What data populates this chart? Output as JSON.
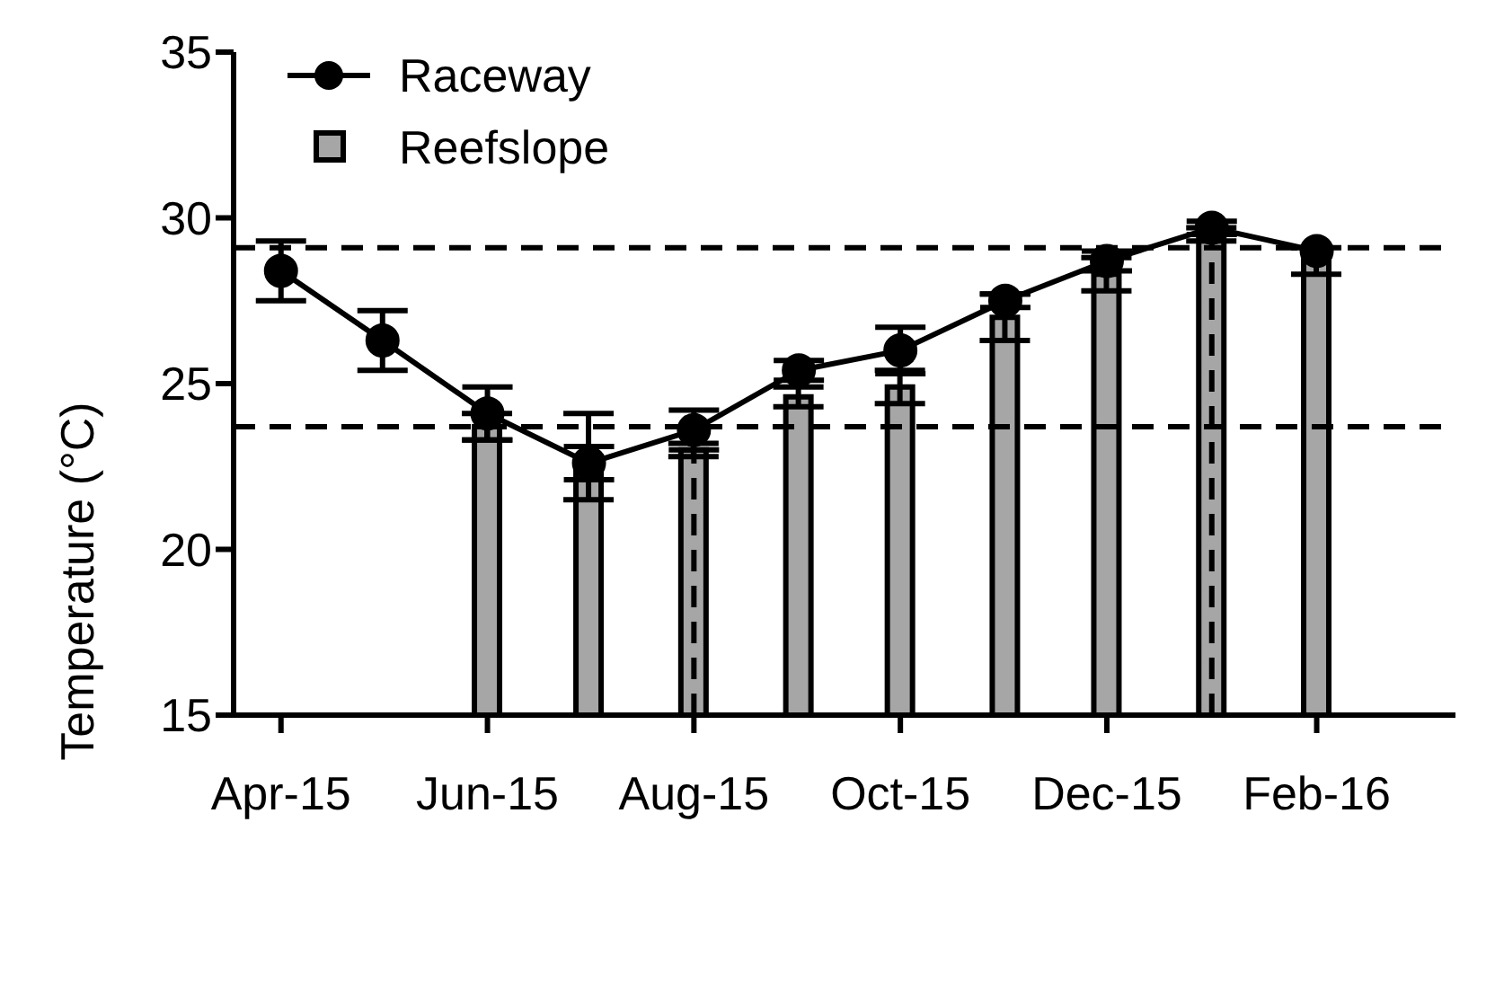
{
  "chart_data": {
    "type": "line",
    "ylabel": "Temperature (°C)",
    "x": [
      "2015-04",
      "2015-05",
      "2015-06",
      "2015-07",
      "2015-08",
      "2015-09",
      "2015-10",
      "2015-11",
      "2015-12",
      "2016-01",
      "2016-02"
    ],
    "xlim": [
      "2015-03-18",
      "2016-03-13"
    ],
    "xticks": [
      {
        "value": "2015-04",
        "label": "Apr-15"
      },
      {
        "value": "2015-06",
        "label": "Jun-15"
      },
      {
        "value": "2015-08",
        "label": "Aug-15"
      },
      {
        "value": "2015-10",
        "label": "Oct-15"
      },
      {
        "value": "2015-12",
        "label": "Dec-15"
      },
      {
        "value": "2016-02",
        "label": "Feb-16"
      }
    ],
    "ylim": [
      15,
      35
    ],
    "yticks": [
      15,
      20,
      25,
      30,
      35
    ],
    "series": [
      {
        "name": "Reefslope",
        "type": "bar",
        "color": "#a6a6a6",
        "values": [
          null,
          null,
          23.7,
          22.8,
          23.0,
          24.6,
          24.9,
          27.0,
          28.3,
          29.5,
          28.7
        ],
        "errors": [
          null,
          null,
          0.4,
          1.3,
          0.2,
          0.3,
          0.5,
          0.7,
          0.5,
          0.2,
          0.4
        ]
      },
      {
        "name": "Raceway",
        "color": "#000000",
        "marker": "circle",
        "values": [
          28.4,
          26.3,
          24.1,
          22.6,
          23.6,
          25.4,
          26.0,
          27.5,
          28.7,
          29.7,
          29.0
        ],
        "errors": [
          0.9,
          0.9,
          0.8,
          0.5,
          0.6,
          0.3,
          0.7,
          0.2,
          0.3,
          0.2,
          null
        ]
      }
    ],
    "ref_lines": [
      {
        "axis": "y",
        "value": 29.1,
        "color": "#000000",
        "line_style": "dashed"
      },
      {
        "axis": "y",
        "value": 23.7,
        "color": "#000000",
        "line_style": "dashed"
      },
      {
        "axis": "x",
        "value": "2015-08",
        "color": "#000000",
        "line_style": "dashed"
      },
      {
        "axis": "x",
        "value": "2016-01",
        "color": "#000000",
        "line_style": "dashed"
      }
    ],
    "legend": "top left"
  }
}
